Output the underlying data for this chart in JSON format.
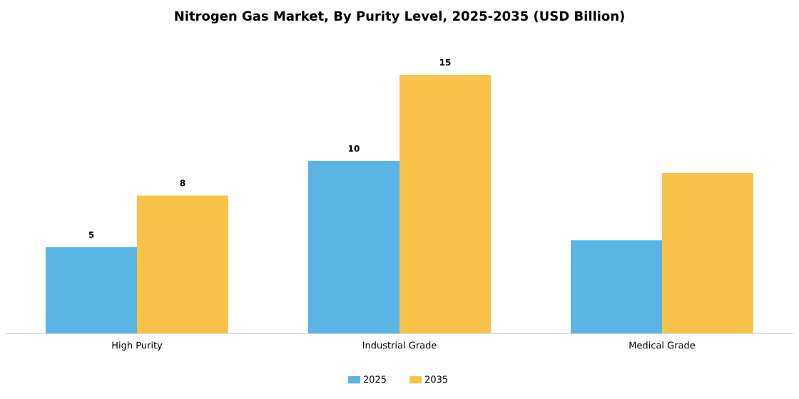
{
  "chart_data": {
    "type": "bar",
    "title": "Nitrogen Gas Market, By Purity Level, 2025-2035 (USD Billion)",
    "categories": [
      "High Purity",
      "Industrial Grade",
      "Medical Grade"
    ],
    "series": [
      {
        "name": "2025",
        "color": "#5ab4e5",
        "values": [
          5,
          10,
          5.4
        ],
        "value_labels": [
          "5",
          "10",
          null
        ]
      },
      {
        "name": "2035",
        "color": "#f9c34a",
        "values": [
          8,
          15,
          9.3
        ],
        "value_labels": [
          "8",
          "15",
          null
        ]
      }
    ],
    "legend": "bottom"
  }
}
